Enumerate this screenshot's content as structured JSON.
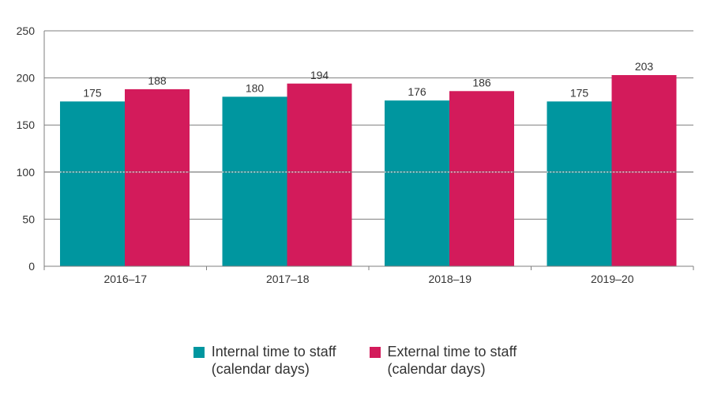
{
  "chart_data": {
    "type": "bar",
    "categories": [
      "2016–17",
      "2017–18",
      "2018–19",
      "2019–20"
    ],
    "series": [
      {
        "name": "Internal time to staff\n(calendar days)",
        "values": [
          175,
          180,
          176,
          175
        ],
        "color": "#00969f"
      },
      {
        "name": "External time to staff\n(calendar days)",
        "values": [
          188,
          194,
          186,
          203
        ],
        "color": "#d31b5b"
      }
    ],
    "ylim": [
      0,
      250
    ],
    "yticks": [
      0,
      50,
      100,
      150,
      200,
      250
    ],
    "grid": true,
    "reference_line": 100,
    "legend_position": "bottom"
  }
}
